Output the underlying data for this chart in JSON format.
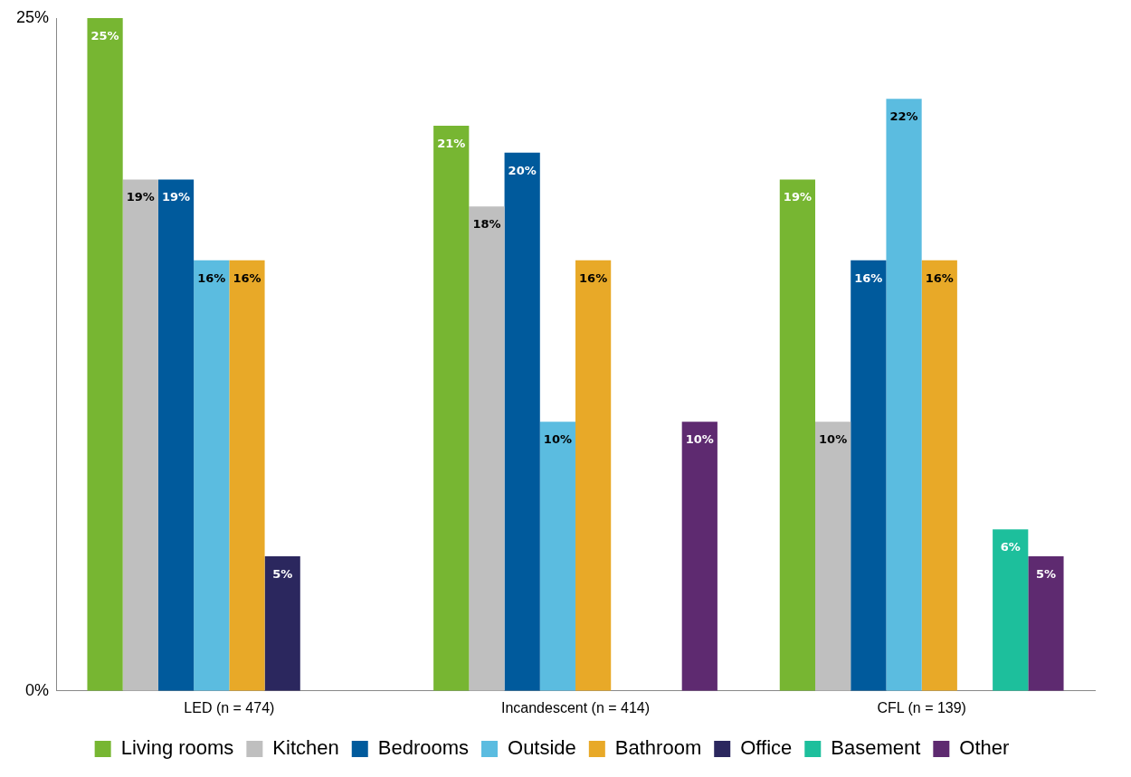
{
  "chart_data": {
    "type": "bar",
    "categories": [
      "LED (n = 474)",
      "Incandescent (n = 414)",
      "CFL (n = 139)"
    ],
    "series": [
      {
        "name": "Living rooms",
        "color": "#77b632",
        "values": [
          25,
          21,
          19
        ],
        "value_labels": [
          "25%",
          "21%",
          "19%"
        ]
      },
      {
        "name": "Kitchen",
        "color": "#bfbfbf",
        "values": [
          19,
          18,
          10
        ],
        "value_labels": [
          "19%",
          "18%",
          "10%"
        ]
      },
      {
        "name": "Bedrooms",
        "color": "#005a9c",
        "values": [
          19,
          20,
          16
        ],
        "value_labels": [
          "19%",
          "20%",
          "16%"
        ]
      },
      {
        "name": "Outside",
        "color": "#5bbce0",
        "values": [
          16,
          10,
          22
        ],
        "value_labels": [
          "16%",
          "10%",
          "22%"
        ]
      },
      {
        "name": "Bathroom",
        "color": "#e8a928",
        "values": [
          16,
          16,
          16
        ],
        "value_labels": [
          "16%",
          "16%",
          "16%"
        ]
      },
      {
        "name": "Office",
        "color": "#2b275e",
        "values": [
          5,
          null,
          null
        ],
        "value_labels": [
          "5%",
          null,
          null
        ]
      },
      {
        "name": "Basement",
        "color": "#1dbf9c",
        "values": [
          null,
          null,
          6
        ],
        "value_labels": [
          null,
          null,
          "6%"
        ]
      },
      {
        "name": "Other",
        "color": "#5e2a70",
        "values": [
          null,
          10,
          5
        ],
        "value_labels": [
          null,
          "10%",
          "5%"
        ]
      }
    ],
    "ylim": [
      0,
      25
    ],
    "yticks": [
      {
        "value": 0,
        "label": "0%"
      },
      {
        "value": 25,
        "label": "25%"
      }
    ],
    "grid": false,
    "legend": "bottom"
  }
}
